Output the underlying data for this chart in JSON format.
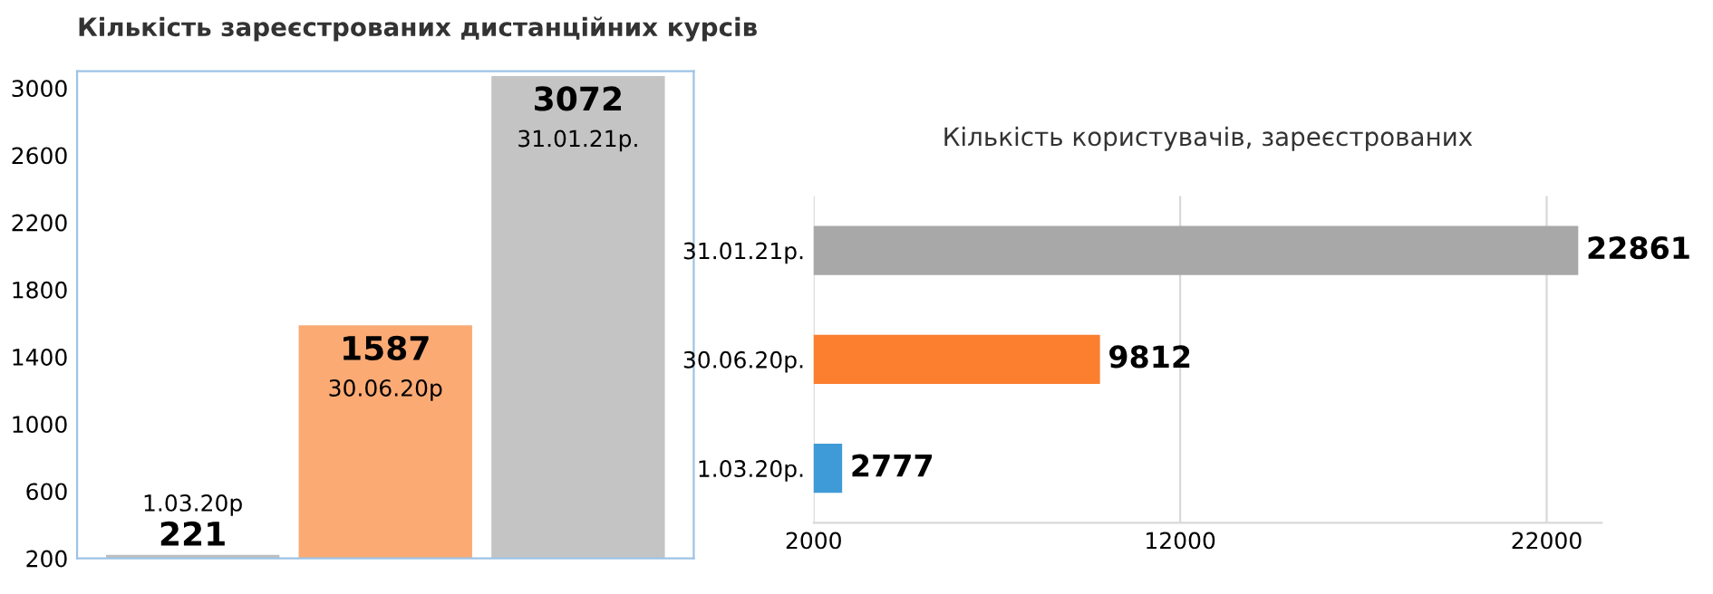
{
  "chart_data": [
    {
      "type": "bar",
      "title": "Кількість зареєстрованих дистанційних курсів",
      "categories": [
        "1.03.20р",
        "30.06.20р",
        "31.01.21р."
      ],
      "values": [
        221,
        1587,
        3072
      ],
      "colors": [
        "#bfbfbf",
        "#fbaa74",
        "#c4c4c4"
      ],
      "ylim": [
        200,
        3100
      ],
      "yticks": [
        200,
        600,
        1000,
        1400,
        1800,
        2200,
        2600,
        3000
      ],
      "data_labels": true,
      "tick_labels": "y"
    },
    {
      "type": "bar",
      "orientation": "horizontal",
      "title": "Кількість користувачів, зареєстрованих",
      "categories": [
        "31.01.21р.",
        "30.06.20р.",
        "1.03.20р."
      ],
      "values": [
        22861,
        9812,
        2777
      ],
      "colors": [
        "#a8a8a8",
        "#fb7f2f",
        "#3f9bd7"
      ],
      "xlim": [
        2000,
        23500
      ],
      "xticks": [
        2000,
        12000,
        22000
      ],
      "grid": "x",
      "data_labels": true
    }
  ]
}
